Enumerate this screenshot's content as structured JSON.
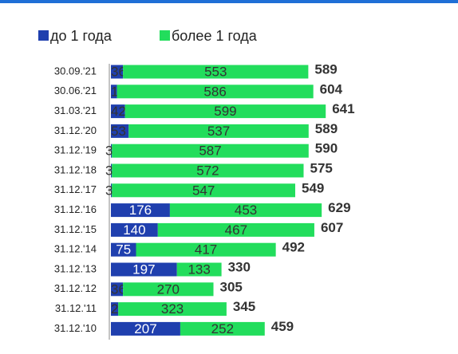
{
  "chart_data": {
    "type": "stacked-bar-horizontal",
    "categories": [
      "30.09.'21",
      "30.06.'21",
      "31.03.'21",
      "31.12.'20",
      "31.12.'19",
      "31.12.'18",
      "31.12.'17",
      "31.12.'16",
      "31.12.'15",
      "31.12.'14",
      "31.12.'13",
      "31.12.'12",
      "31.12.'11",
      "31.12.'10"
    ],
    "series": [
      {
        "name": "до 1 года",
        "color": "#1f3fae",
        "values": [
          36,
          18,
          42,
          53,
          3,
          3,
          3,
          176,
          140,
          75,
          197,
          36,
          22,
          207
        ]
      },
      {
        "name": "более 1 года",
        "color": "#22dd5c",
        "values": [
          553,
          586,
          599,
          537,
          587,
          572,
          547,
          453,
          467,
          417,
          133,
          270,
          323,
          252
        ]
      }
    ],
    "totals": [
      589,
      604,
      641,
      589,
      590,
      575,
      549,
      629,
      607,
      492,
      330,
      305,
      345,
      459
    ]
  }
}
